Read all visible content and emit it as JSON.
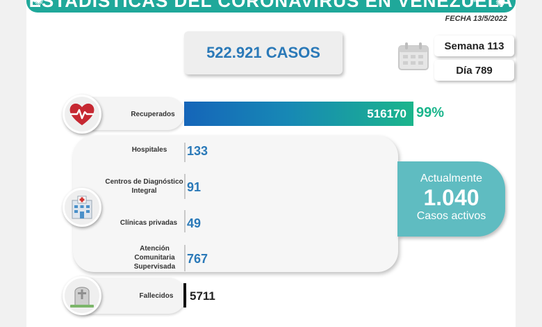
{
  "header": {
    "title": "ESTADÍSTICAS DEL CORONAVIRUS EN VENEZUELA",
    "date": "FECHA 13/5/2022"
  },
  "summary": {
    "total_cases": "522.921 CASOS",
    "week": "Semana 113",
    "day": "Día 789"
  },
  "recovered": {
    "label": "Recuperados",
    "value": "516170",
    "percent": "99%"
  },
  "hospitalization": [
    {
      "label": "Hospitales",
      "value": "133"
    },
    {
      "label": "Centros de Diagnóstico Integral",
      "value": "91"
    },
    {
      "label": "Clínicas privadas",
      "value": "49"
    },
    {
      "label": "Atención Comunitaria Supervisada",
      "value": "767"
    }
  ],
  "active": {
    "line1": "Actualmente",
    "count": "1.040",
    "line3": "Casos activos"
  },
  "deceased": {
    "label": "Fallecidos",
    "value": "5711"
  },
  "icons": {
    "calendar": "calendar-icon",
    "recovered": "heart-pulse-icon",
    "hospital": "hospital-icon",
    "deceased": "tombstone-icon",
    "virus": "virus-icon"
  },
  "colors": {
    "banner": "#1fa89a",
    "accent_blue": "#2a79b8",
    "accent_green": "#1bb58c",
    "active_bubble": "#5fbcc1"
  }
}
